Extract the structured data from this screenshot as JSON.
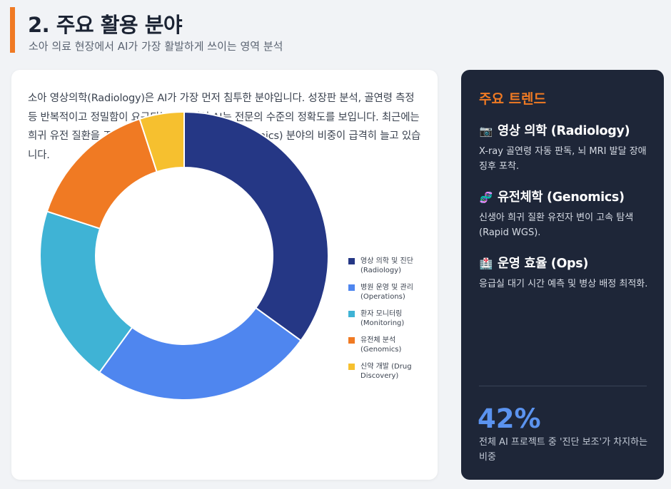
{
  "header": {
    "title": "2. 주요 활용 분야",
    "subtitle": "소아 의료 현장에서 AI가 가장 활발하게 쓰이는 영역 분석"
  },
  "intro": "소아 영상의학(Radiology)은 AI가 가장 먼저 침투한 분야입니다. 성장판 분석, 골연령 측정 등 반복적이고 정밀함이 요구되는 작업에서 AI는 전문의 수준의 정확도를 보입니다. 최근에는 희귀 유전 질환을 조기에 발견하는 유전체 분석(Genomics) 분야의 비중이 급격히 늘고 있습니다.",
  "chart_data": {
    "type": "pie",
    "variant": "donut",
    "title": "",
    "categories": [
      "영상 의학 및 진단 (Radiology)",
      "병원 운영 및 관리 (Operations)",
      "환자 모니터링 (Monitoring)",
      "유전체 분석 (Genomics)",
      "신약 개발 (Drug Discovery)"
    ],
    "values": [
      35,
      25,
      20,
      15,
      5
    ],
    "colors": [
      "#253785",
      "#4f86ef",
      "#3fb3d5",
      "#f07a23",
      "#f6c02f"
    ],
    "legend_position": "right"
  },
  "legend": [
    {
      "label": "영상 의학 및 진단 (Radiology)"
    },
    {
      "label": "병원 운영 및 관리 (Operations)"
    },
    {
      "label": "환자 모니터링 (Monitoring)"
    },
    {
      "label": "유전체 분석 (Genomics)"
    },
    {
      "label": "신약 개발 (Drug Discovery)"
    }
  ],
  "panel": {
    "title": "주요 트렌드",
    "trends": [
      {
        "icon": "camera-icon",
        "glyph": "📷",
        "title": "영상 의학 (Radiology)",
        "desc": "X-ray 골연령 자동 판독, 뇌 MRI 발달 장애 징후 포착."
      },
      {
        "icon": "dna-icon",
        "glyph": "🧬",
        "title": "유전체학 (Genomics)",
        "desc": "신생아 희귀 질환 유전자 변이 고속 탐색 (Rapid WGS)."
      },
      {
        "icon": "hospital-icon",
        "glyph": "🏥",
        "title": "운영 효율 (Ops)",
        "desc": "응급실 대기 시간 예측 및 병상 배정 최적화."
      }
    ],
    "stat_value": "42%",
    "stat_label": "전체 AI 프로젝트 중 '진단 보조'가 차지하는 비중"
  }
}
